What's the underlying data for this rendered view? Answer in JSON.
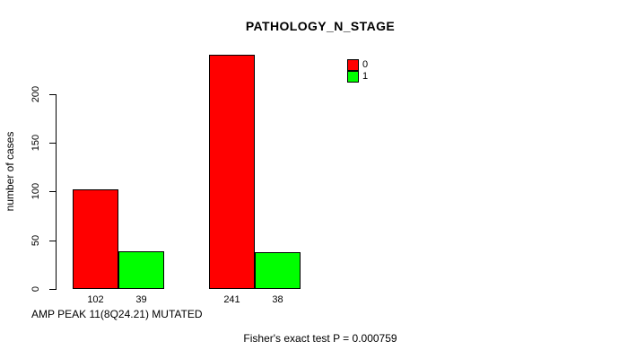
{
  "figure": {
    "title": "PATHOLOGY_N_STAGE",
    "y_axis_label": "number of cases",
    "x_axis_label": "AMP PEAK 11(8Q24.21) MUTATED",
    "stat_annotation": "Fisher's exact test P = 0.000759"
  },
  "legend": {
    "items": [
      {
        "label": "0",
        "color": "#ff0000"
      },
      {
        "label": "1",
        "color": "#00ff00"
      }
    ]
  },
  "chart_data": {
    "type": "bar",
    "title": "PATHOLOGY_N_STAGE",
    "xlabel": "AMP PEAK 11(8Q24.21) MUTATED",
    "ylabel": "number of cases",
    "categories": [
      "",
      ""
    ],
    "series": [
      {
        "name": "0",
        "color": "#ff0000",
        "values": [
          102,
          241
        ]
      },
      {
        "name": "1",
        "color": "#00ff00",
        "values": [
          39,
          38
        ]
      }
    ],
    "bar_value_labels": [
      [
        "102",
        "241"
      ],
      [
        "39",
        "38"
      ]
    ],
    "yticks": [
      0,
      50,
      100,
      150,
      200
    ],
    "ylim": [
      0,
      241
    ],
    "grid": false,
    "legend_position": "top-right",
    "annotation": "Fisher's exact test P = 0.000759"
  }
}
